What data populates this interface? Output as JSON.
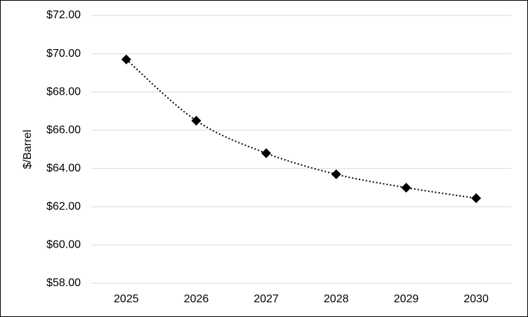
{
  "chart_data": {
    "type": "line",
    "y_label": "$/Barrel",
    "categories": [
      "2025",
      "2026",
      "2027",
      "2028",
      "2029",
      "2030"
    ],
    "series": [
      {
        "name": null,
        "color": "#000000",
        "values": [
          69.7,
          66.5,
          64.8,
          63.7,
          63.0,
          62.45
        ]
      }
    ],
    "marker": "diamond",
    "line_style": "dotted",
    "smooth": true,
    "ylim": [
      58,
      72
    ],
    "yticks": [
      {
        "value": 58,
        "label": "$58.00"
      },
      {
        "value": 60,
        "label": "$60.00"
      },
      {
        "value": 62,
        "label": "$62.00"
      },
      {
        "value": 64,
        "label": "$64.00"
      },
      {
        "value": 66,
        "label": "$66.00"
      },
      {
        "value": 68,
        "label": "$68.00"
      },
      {
        "value": 70,
        "label": "$70.00"
      },
      {
        "value": 72,
        "label": "$72.00"
      }
    ],
    "grid": true
  }
}
